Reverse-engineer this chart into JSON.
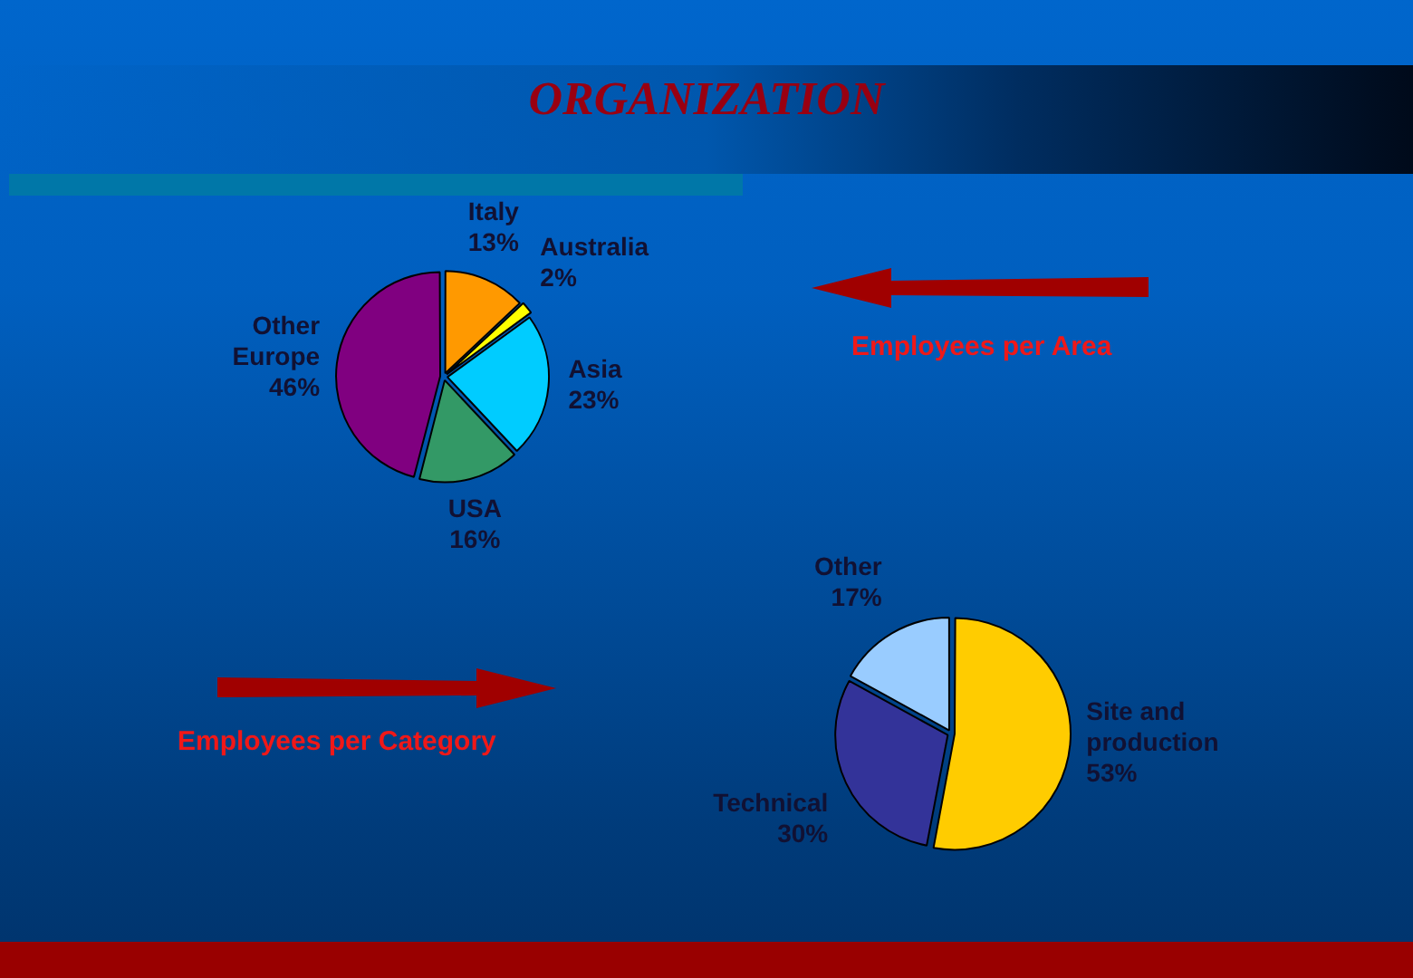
{
  "chart_data": [
    {
      "type": "pie",
      "title": "ORGANIZATION",
      "subtitle": "Employees per Area",
      "categories": [
        "Italy",
        "Australia",
        "Asia",
        "USA",
        "Other Europe"
      ],
      "values": [
        13,
        2,
        23,
        16,
        46
      ],
      "colors": [
        "#ff9900",
        "#ffff00",
        "#00ccff",
        "#339966",
        "#800080"
      ],
      "value_labels": [
        "13%",
        "2%",
        "23%",
        "16%",
        "46%"
      ]
    },
    {
      "type": "pie",
      "title": "Employees per Category",
      "categories": [
        "Site and production",
        "Technical",
        "Other"
      ],
      "values": [
        53,
        30,
        17
      ],
      "colors": [
        "#ffcc00",
        "#333399",
        "#99ccff"
      ],
      "value_labels": [
        "53%",
        "30%",
        "17%"
      ]
    }
  ]
}
